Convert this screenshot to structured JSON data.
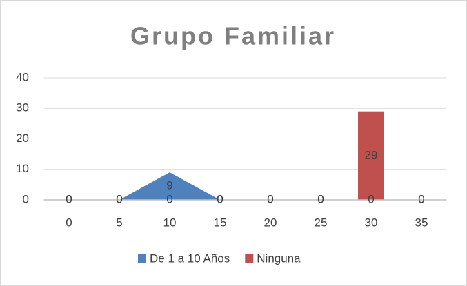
{
  "chart_data": {
    "type": "bar",
    "title": "Grupo Familiar",
    "categories": [
      0,
      5,
      10,
      15,
      20,
      25,
      30,
      35
    ],
    "series": [
      {
        "name": "De 1 a 10 Años",
        "type": "area",
        "color": "#4f81bd",
        "values": [
          0,
          0,
          9,
          0,
          0,
          0,
          0,
          0
        ]
      },
      {
        "name": "Ninguna",
        "type": "bar",
        "color": "#c0504d",
        "values": [
          0,
          0,
          0,
          0,
          0,
          0,
          29,
          0
        ]
      }
    ],
    "ylim": [
      0,
      40
    ],
    "yticks": [
      0,
      10,
      20,
      30,
      40
    ],
    "grid": true,
    "legend": "bottom",
    "data_labels": true
  }
}
